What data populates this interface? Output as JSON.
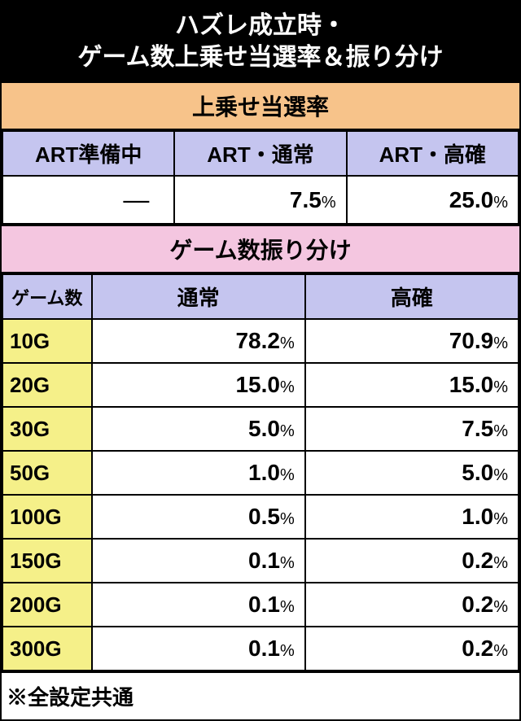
{
  "title": {
    "line1": "ハズレ成立時・",
    "line2": "ゲーム数上乗せ当選率＆振り分け"
  },
  "winRate": {
    "header": "上乗せ当選率",
    "columns": [
      "ART準備中",
      "ART・通常",
      "ART・高確"
    ],
    "values": [
      "—",
      "7.5",
      "25.0"
    ],
    "dashIndex": 0
  },
  "distribution": {
    "header": "ゲーム数振り分け",
    "gameHeader": "ゲーム数",
    "columns": [
      "通常",
      "高確"
    ],
    "rows": [
      {
        "game": "10G",
        "normal": "78.2",
        "high": "70.9"
      },
      {
        "game": "20G",
        "normal": "15.0",
        "high": "15.0"
      },
      {
        "game": "30G",
        "normal": "5.0",
        "high": "7.5"
      },
      {
        "game": "50G",
        "normal": "1.0",
        "high": "5.0"
      },
      {
        "game": "100G",
        "normal": "0.5",
        "high": "1.0"
      },
      {
        "game": "150G",
        "normal": "0.1",
        "high": "0.2"
      },
      {
        "game": "200G",
        "normal": "0.1",
        "high": "0.2"
      },
      {
        "game": "300G",
        "normal": "0.1",
        "high": "0.2"
      }
    ]
  },
  "footer": "※全設定共通",
  "pctSymbol": "%"
}
